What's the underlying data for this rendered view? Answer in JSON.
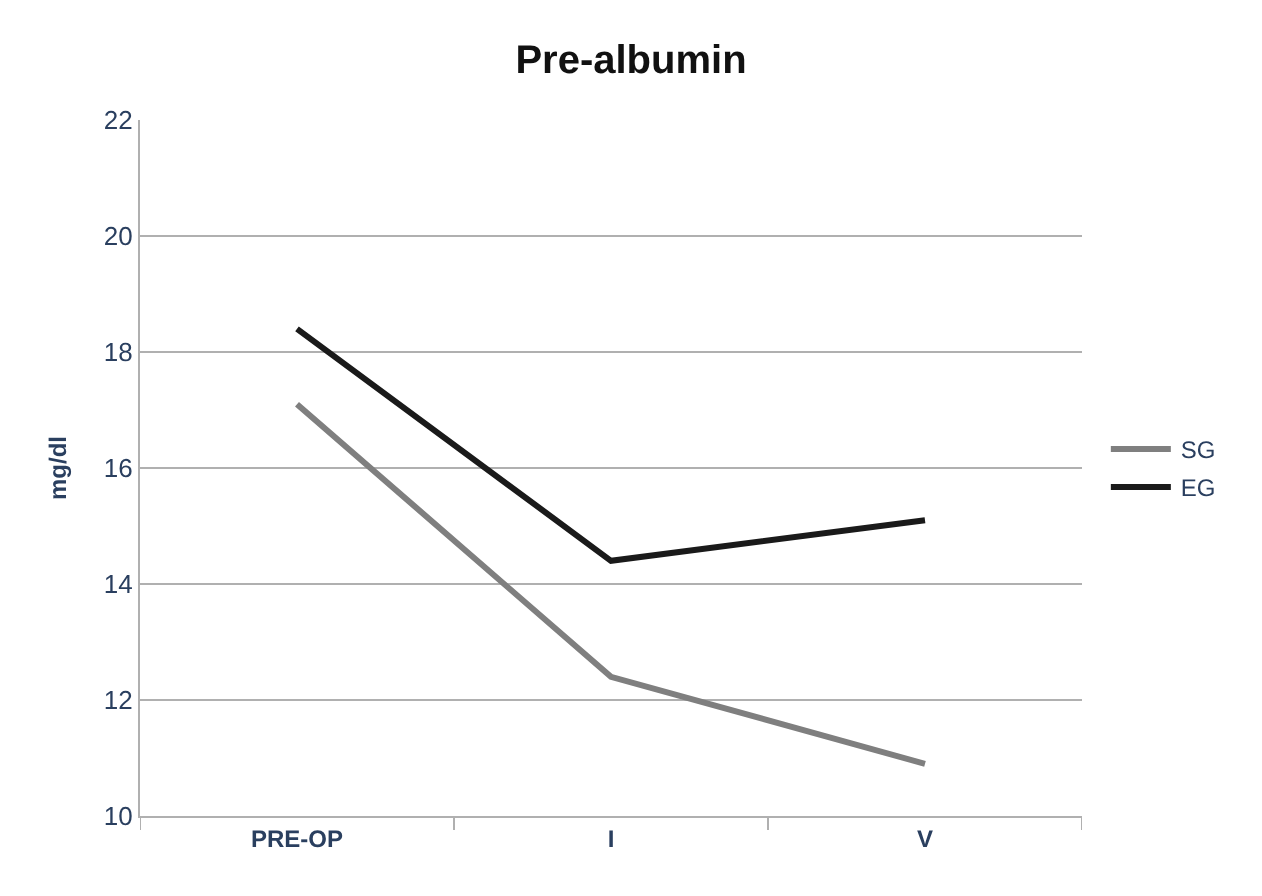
{
  "chart_data": {
    "type": "line",
    "title": "Pre-albumin",
    "ylabel": "mg/dl",
    "categories": [
      "PRE-OP",
      "I",
      "V"
    ],
    "series": [
      {
        "name": "SG",
        "color": "#7f7f7f",
        "values": [
          17.1,
          12.4,
          10.9
        ]
      },
      {
        "name": "EG",
        "color": "#1a1a1a",
        "values": [
          18.4,
          14.4,
          15.1
        ]
      }
    ],
    "ylim": [
      10,
      22
    ],
    "yticks": [
      10,
      12,
      14,
      16,
      18,
      20,
      22
    ],
    "grid": "y",
    "legend": "right",
    "marker": "none",
    "line_style": "solid"
  }
}
